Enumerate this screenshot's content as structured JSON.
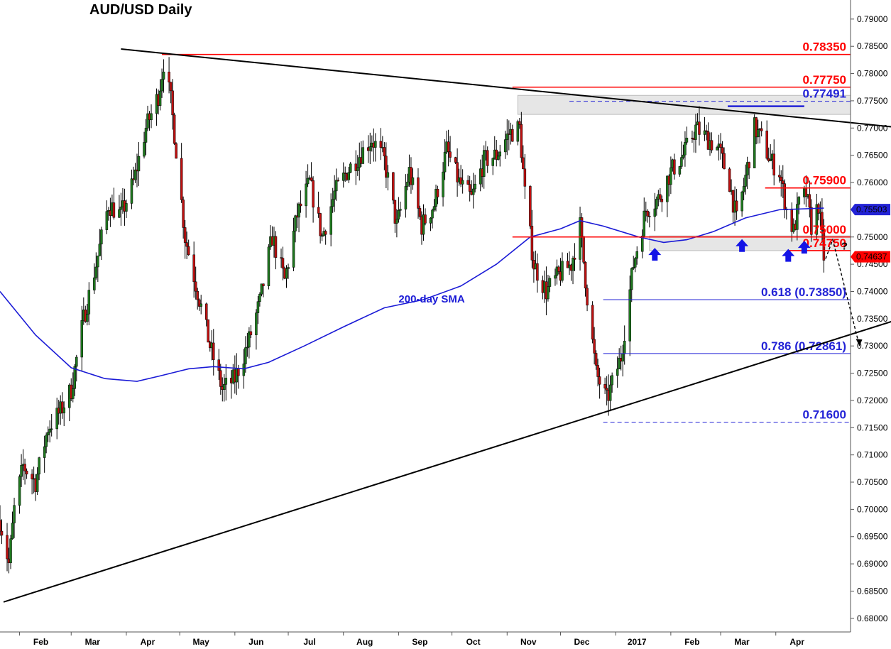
{
  "chart_data": {
    "type": "candlestick",
    "title": "AUD/USD Daily",
    "ylim": [
      0.6775,
      0.7935
    ],
    "y_ticks": [
      "0.79000",
      "0.78500",
      "0.78000",
      "0.77500",
      "0.77000",
      "0.76500",
      "0.76000",
      "0.75500",
      "0.75000",
      "0.74500",
      "0.74000",
      "0.73500",
      "0.73000",
      "0.72500",
      "0.72000",
      "0.71500",
      "0.71000",
      "0.70500",
      "0.70000",
      "0.69500",
      "0.69000",
      "0.68500",
      "0.68000"
    ],
    "x_range": [
      "2016-01-21",
      "2017-05-13"
    ],
    "x_ticks": [
      {
        "label": "Feb",
        "date": "2016-02-01"
      },
      {
        "label": "Mar",
        "date": "2016-03-01"
      },
      {
        "label": "Apr",
        "date": "2016-04-01"
      },
      {
        "label": "May",
        "date": "2016-05-01"
      },
      {
        "label": "Jun",
        "date": "2016-06-01"
      },
      {
        "label": "Jul",
        "date": "2016-07-01"
      },
      {
        "label": "Aug",
        "date": "2016-08-01"
      },
      {
        "label": "Sep",
        "date": "2016-09-01"
      },
      {
        "label": "Oct",
        "date": "2016-10-01"
      },
      {
        "label": "Nov",
        "date": "2016-11-01"
      },
      {
        "label": "Dec",
        "date": "2016-12-01"
      },
      {
        "label": "2017",
        "date": "2017-01-01"
      },
      {
        "label": "Feb",
        "date": "2017-02-01"
      },
      {
        "label": "Mar",
        "date": "2017-03-01"
      },
      {
        "label": "Apr",
        "date": "2017-04-01"
      }
    ],
    "price_path": [
      [
        "2016-01-21",
        0.698
      ],
      [
        "2016-01-26",
        0.69
      ],
      [
        "2016-01-29",
        0.7
      ],
      [
        "2016-02-03",
        0.708
      ],
      [
        "2016-02-10",
        0.705
      ],
      [
        "2016-02-17",
        0.715
      ],
      [
        "2016-02-24",
        0.718
      ],
      [
        "2016-03-01",
        0.722
      ],
      [
        "2016-03-08",
        0.735
      ],
      [
        "2016-03-15",
        0.745
      ],
      [
        "2016-03-22",
        0.756
      ],
      [
        "2016-03-29",
        0.754
      ],
      [
        "2016-04-05",
        0.76
      ],
      [
        "2016-04-12",
        0.77
      ],
      [
        "2016-04-19",
        0.776
      ],
      [
        "2016-04-22",
        0.782
      ],
      [
        "2016-04-26",
        0.775
      ],
      [
        "2016-04-29",
        0.766
      ],
      [
        "2016-05-04",
        0.75
      ],
      [
        "2016-05-11",
        0.74
      ],
      [
        "2016-05-18",
        0.73
      ],
      [
        "2016-05-25",
        0.722
      ],
      [
        "2016-06-01",
        0.724
      ],
      [
        "2016-06-08",
        0.73
      ],
      [
        "2016-06-15",
        0.738
      ],
      [
        "2016-06-22",
        0.75
      ],
      [
        "2016-06-29",
        0.742
      ],
      [
        "2016-07-06",
        0.754
      ],
      [
        "2016-07-13",
        0.76
      ],
      [
        "2016-07-20",
        0.75
      ],
      [
        "2016-07-27",
        0.758
      ],
      [
        "2016-08-03",
        0.762
      ],
      [
        "2016-08-10",
        0.765
      ],
      [
        "2016-08-17",
        0.768
      ],
      [
        "2016-08-24",
        0.764
      ],
      [
        "2016-08-31",
        0.752
      ],
      [
        "2016-09-07",
        0.762
      ],
      [
        "2016-09-14",
        0.752
      ],
      [
        "2016-09-21",
        0.756
      ],
      [
        "2016-09-28",
        0.766
      ],
      [
        "2016-10-05",
        0.76
      ],
      [
        "2016-10-12",
        0.757
      ],
      [
        "2016-10-19",
        0.764
      ],
      [
        "2016-10-26",
        0.765
      ],
      [
        "2016-11-02",
        0.769
      ],
      [
        "2016-11-08",
        0.77
      ],
      [
        "2016-11-11",
        0.758
      ],
      [
        "2016-11-16",
        0.745
      ],
      [
        "2016-11-23",
        0.74
      ],
      [
        "2016-11-30",
        0.743
      ],
      [
        "2016-12-07",
        0.745
      ],
      [
        "2016-12-12",
        0.752
      ],
      [
        "2016-12-16",
        0.739
      ],
      [
        "2016-12-21",
        0.725
      ],
      [
        "2016-12-27",
        0.72
      ],
      [
        "2017-01-04",
        0.728
      ],
      [
        "2017-01-11",
        0.745
      ],
      [
        "2017-01-18",
        0.755
      ],
      [
        "2017-01-25",
        0.757
      ],
      [
        "2017-02-01",
        0.762
      ],
      [
        "2017-02-08",
        0.765
      ],
      [
        "2017-02-15",
        0.77
      ],
      [
        "2017-02-22",
        0.768
      ],
      [
        "2017-02-28",
        0.766
      ],
      [
        "2017-03-06",
        0.76
      ],
      [
        "2017-03-10",
        0.753
      ],
      [
        "2017-03-15",
        0.761
      ],
      [
        "2017-03-20",
        0.77
      ],
      [
        "2017-03-24",
        0.768
      ],
      [
        "2017-03-29",
        0.764
      ],
      [
        "2017-04-03",
        0.762
      ],
      [
        "2017-04-07",
        0.755
      ],
      [
        "2017-04-11",
        0.751
      ],
      [
        "2017-04-14",
        0.756
      ],
      [
        "2017-04-18",
        0.758
      ],
      [
        "2017-04-21",
        0.752
      ],
      [
        "2017-04-25",
        0.756
      ],
      [
        "2017-04-28",
        0.7464
      ]
    ],
    "sma200": {
      "label": "200-day SMA",
      "color": "#1a1ad6",
      "points": [
        [
          "2016-01-21",
          0.74
        ],
        [
          "2016-02-10",
          0.732
        ],
        [
          "2016-03-01",
          0.726
        ],
        [
          "2016-03-20",
          0.724
        ],
        [
          "2016-04-07",
          0.7235
        ],
        [
          "2016-04-20",
          0.7245
        ],
        [
          "2016-05-06",
          0.7258
        ],
        [
          "2016-05-20",
          0.7262
        ],
        [
          "2016-06-06",
          0.7258
        ],
        [
          "2016-06-20",
          0.727
        ],
        [
          "2016-07-10",
          0.73
        ],
        [
          "2016-08-01",
          0.7335
        ],
        [
          "2016-08-24",
          0.737
        ],
        [
          "2016-09-15",
          0.7385
        ],
        [
          "2016-10-06",
          0.741
        ],
        [
          "2016-10-26",
          0.745
        ],
        [
          "2016-11-14",
          0.75
        ],
        [
          "2016-12-01",
          0.7515
        ],
        [
          "2016-12-12",
          0.753
        ],
        [
          "2016-12-25",
          0.752
        ],
        [
          "2017-01-14",
          0.75
        ],
        [
          "2017-01-28",
          0.749
        ],
        [
          "2017-02-10",
          0.7495
        ],
        [
          "2017-02-25",
          0.751
        ],
        [
          "2017-03-15",
          0.7535
        ],
        [
          "2017-04-03",
          0.755
        ],
        [
          "2017-04-28",
          0.7553
        ]
      ]
    },
    "horizontal_levels": [
      {
        "label": "0.78350",
        "value": 0.7835,
        "color": "#ff0000",
        "from": "2016-04-21",
        "to": "2017-05-13"
      },
      {
        "label": "0.77750",
        "value": 0.7775,
        "color": "#ff0000",
        "from": "2016-11-04",
        "to": "2017-05-13"
      },
      {
        "label": "0.77491",
        "value": 0.77491,
        "color": "#2323d6",
        "dashed": true,
        "from": "2016-12-06",
        "to": "2017-05-13"
      },
      {
        "label": "0.75900",
        "value": 0.759,
        "color": "#ff0000",
        "from": "2017-03-26",
        "to": "2017-05-13"
      },
      {
        "label": "0.75000",
        "value": 0.75,
        "color": "#ff0000",
        "from": "2016-11-04",
        "to": "2017-05-13"
      },
      {
        "label": "0.74750",
        "value": 0.7475,
        "color": "#ff0000",
        "from": "2017-04-08",
        "to": "2017-05-13"
      },
      {
        "label": "0.618 (0.73850)",
        "value": 0.7385,
        "color": "#2323d6",
        "from": "2016-12-25",
        "to": "2017-05-13"
      },
      {
        "label": "0.786 (0.72861)",
        "value": 0.72861,
        "color": "#2323d6",
        "from": "2016-12-25",
        "to": "2017-05-13"
      },
      {
        "label": "0.71600",
        "value": 0.716,
        "color": "#2323d6",
        "dashed": true,
        "from": "2016-12-25",
        "to": "2017-05-13"
      }
    ],
    "zones": [
      {
        "name": "resistance-zone",
        "from": "2016-11-07",
        "to": "2017-05-13",
        "low": 0.7725,
        "high": 0.776
      },
      {
        "name": "support-zone",
        "from": "2017-01-20",
        "to": "2017-05-13",
        "low": 0.7475,
        "high": 0.7502
      }
    ],
    "trendlines": [
      {
        "name": "upper-trendline",
        "start": [
          "2016-03-29",
          0.7845
        ],
        "end": [
          "2017-06-12",
          0.77
        ]
      },
      {
        "name": "lower-trendline",
        "start": [
          "2016-01-23",
          0.683
        ],
        "end": [
          "2017-06-12",
          0.7352
        ]
      }
    ],
    "current_price": {
      "label": "0.75503",
      "value": 0.75503,
      "color": "#2323d6"
    },
    "last_price": {
      "label": "0.74637",
      "value": 0.74637,
      "color": "#ff0000"
    },
    "support_arrows": [
      {
        "date": "2017-01-23",
        "value": 0.7467
      },
      {
        "date": "2017-03-13",
        "value": 0.7483
      },
      {
        "date": "2017-04-08",
        "value": 0.7465
      },
      {
        "date": "2017-04-17",
        "value": 0.748
      }
    ],
    "projection": {
      "question": "?",
      "points": [
        [
          "2017-04-29",
          0.746
        ],
        [
          "2017-05-03",
          0.7495
        ],
        [
          "2017-05-18",
          0.73
        ]
      ]
    },
    "annotations": [
      {
        "text": "200-day SMA",
        "date": "2016-09-01",
        "value": 0.738,
        "color": "#1a1ad6"
      }
    ]
  }
}
